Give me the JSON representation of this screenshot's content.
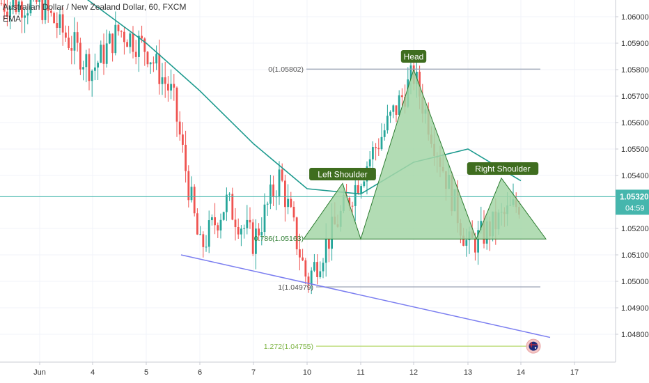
{
  "legend": {
    "symbol_line": "Australian Dollar / New Zealand Dollar, 60, FXCM",
    "indicator": "EMA"
  },
  "colors": {
    "up": "#26a69a",
    "down": "#ef5350",
    "ema": "#1c9a8e",
    "pattern_fill": "#a5d6a7",
    "pattern_stroke": "#2e7d32",
    "label_bg": "#3f6d1f",
    "trendline": "#7b7ef0",
    "fib_line": "#9aa3b3",
    "fib_ext": "#b5d86b",
    "price_tag": "#46b6ad"
  },
  "price_axis": {
    "ticks": [
      "1.06000",
      "1.05900",
      "1.05800",
      "1.05700",
      "1.05600",
      "1.05500",
      "1.05400",
      "1.05200",
      "1.05100",
      "1.05000",
      "1.04900",
      "1.04800"
    ],
    "current_price": "1.05320",
    "countdown": "04:59"
  },
  "time_axis": {
    "ticks": [
      "Jun",
      "4",
      "5",
      "6",
      "7",
      "10",
      "11",
      "12",
      "13",
      "14",
      "17"
    ]
  },
  "annotations": {
    "head": "Head",
    "left_shoulder": "Left Shoulder",
    "right_shoulder": "Right Shoulder",
    "fib_0": "0(1.05802)",
    "fib_0786": "0.786(1.05163)",
    "fib_1": "1(1.04979)",
    "fib_1272": "1.272(1.04755)"
  },
  "chart_data": {
    "type": "candlestick",
    "title": "Australian Dollar / New Zealand Dollar, 60, FXCM",
    "ylim": [
      1.0472,
      1.0604
    ],
    "y_ticks": [
      1.06,
      1.059,
      1.058,
      1.057,
      1.056,
      1.055,
      1.054,
      1.052,
      1.051,
      1.05,
      1.049,
      1.048
    ],
    "x_ticks": [
      "Jun",
      "4",
      "5",
      "6",
      "7",
      "10",
      "11",
      "12",
      "13",
      "14",
      "17"
    ],
    "price_path": [
      [
        "Jun",
        1.0605
      ],
      [
        "4",
        1.058
      ],
      [
        "4",
        1.0595
      ],
      [
        "5",
        1.0588
      ],
      [
        "5",
        1.057
      ],
      [
        "6",
        1.0512
      ],
      [
        "6",
        1.053
      ],
      [
        "7",
        1.0515
      ],
      [
        "7",
        1.054
      ],
      [
        "10",
        1.05
      ],
      [
        "11",
        1.054
      ],
      [
        "12",
        1.0578
      ],
      [
        "13",
        1.0513
      ],
      [
        "14",
        1.053
      ]
    ],
    "ema_path": [
      [
        "Jun",
        1.062
      ],
      [
        "4",
        1.0605
      ],
      [
        "5",
        1.059
      ],
      [
        "6",
        1.0572
      ],
      [
        "7",
        1.0552
      ],
      [
        "10",
        1.0535
      ],
      [
        "11",
        1.0533
      ],
      [
        "12",
        1.0545
      ],
      [
        "13",
        1.055
      ],
      [
        "14",
        1.0538
      ]
    ],
    "current_price": 1.0532,
    "fibonacci": [
      {
        "label": "0(1.05802)",
        "price": 1.05802
      },
      {
        "label": "0.786(1.05163)",
        "price": 1.05163
      },
      {
        "label": "1(1.04979)",
        "price": 1.04979
      },
      {
        "label": "1.272(1.04755)",
        "price": 1.04755
      }
    ],
    "pattern": {
      "name": "Head and Shoulders",
      "points": [
        {
          "label": "Left Shoulder",
          "price": 1.0537
        },
        {
          "label": "Head",
          "price": 1.058
        },
        {
          "label": "Right Shoulder",
          "price": 1.0539
        }
      ],
      "neckline": 1.0516
    },
    "legend": [
      "EMA"
    ],
    "grid": true
  }
}
